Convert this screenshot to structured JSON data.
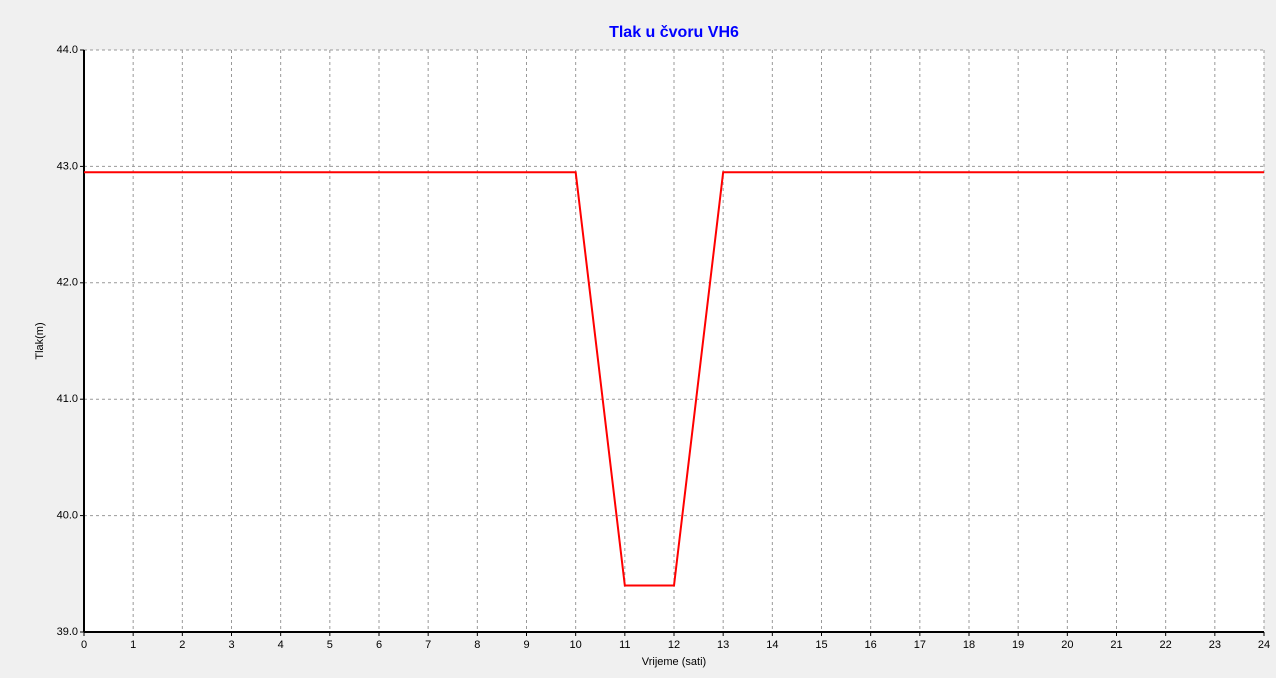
{
  "chart_data": {
    "type": "line",
    "title": "Tlak u čvoru VH6",
    "x_label": "Vrijeme (sati)",
    "y_label": "Tlak(m)",
    "x": [
      0,
      1,
      2,
      3,
      4,
      5,
      6,
      7,
      8,
      9,
      10,
      11,
      12,
      13,
      14,
      15,
      16,
      17,
      18,
      19,
      20,
      21,
      22,
      23,
      24
    ],
    "series": [
      {
        "name": "VH6",
        "color": "#ff0000",
        "values": [
          42.95,
          42.95,
          42.95,
          42.95,
          42.95,
          42.95,
          42.95,
          42.95,
          42.95,
          42.95,
          42.95,
          39.4,
          39.4,
          42.95,
          42.95,
          42.95,
          42.95,
          42.95,
          42.95,
          42.95,
          42.95,
          42.95,
          42.95,
          42.95,
          42.95
        ]
      }
    ],
    "xlim": [
      0,
      24
    ],
    "xticks": [
      0,
      1,
      2,
      3,
      4,
      5,
      6,
      7,
      8,
      9,
      10,
      11,
      12,
      13,
      14,
      15,
      16,
      17,
      18,
      19,
      20,
      21,
      22,
      23,
      24
    ],
    "ylim": [
      39,
      44
    ],
    "yticks": [
      {
        "value": 39,
        "label": "39.0"
      },
      {
        "value": 40,
        "label": "40.0"
      },
      {
        "value": 41,
        "label": "41.0"
      },
      {
        "value": 42,
        "label": "42.0"
      },
      {
        "value": 43,
        "label": "43.0"
      },
      {
        "value": 44,
        "label": "44.0"
      }
    ],
    "grid": true,
    "title_color": "#0000ff"
  }
}
